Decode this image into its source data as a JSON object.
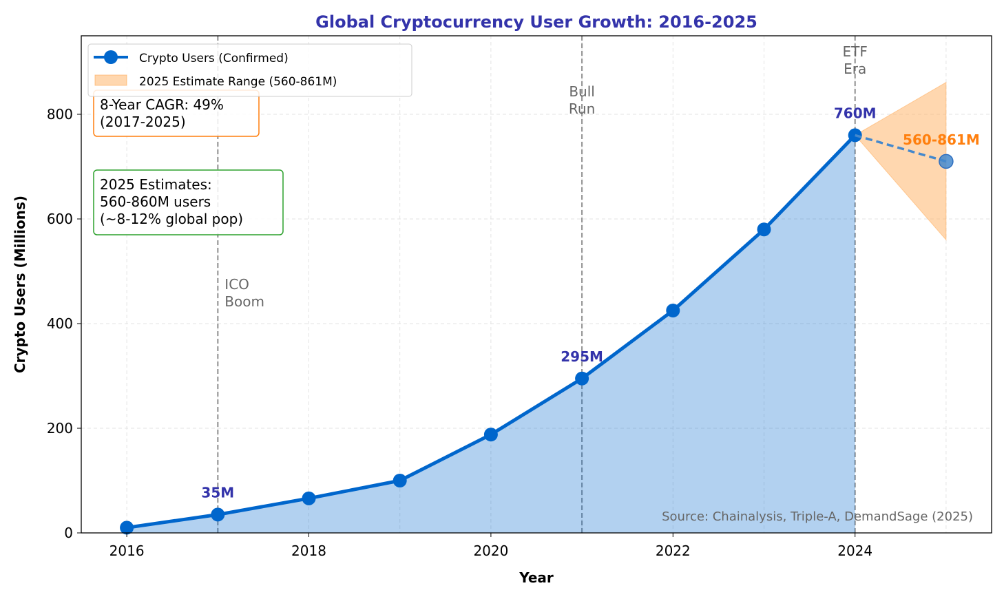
{
  "chart_data": {
    "type": "line",
    "title": "Global Cryptocurrency User Growth: 2016-2025",
    "xlabel": "Year",
    "ylabel": "Crypto Users (Millions)",
    "xlim": [
      2015.5,
      2025.5
    ],
    "ylim": [
      0,
      950
    ],
    "xticks": [
      2016,
      2018,
      2020,
      2022,
      2024
    ],
    "yticks": [
      0,
      200,
      400,
      600,
      800
    ],
    "grid": true,
    "legend_position": "top-left",
    "series": [
      {
        "name": "Crypto Users (Confirmed)",
        "color": "#0066cc",
        "fill": true,
        "x": [
          2016,
          2017,
          2018,
          2019,
          2020,
          2021,
          2022,
          2023,
          2024
        ],
        "y": [
          10,
          35,
          66,
          100,
          188,
          295,
          425,
          580,
          760
        ]
      },
      {
        "name": "2025 Estimate Range (560-861M)",
        "type": "area",
        "color": "#ffa64d",
        "x": [
          2024,
          2025
        ],
        "low": [
          760,
          560
        ],
        "high": [
          760,
          861
        ]
      },
      {
        "type": "dashed-projection",
        "color": "#4488cc",
        "x": [
          2024,
          2025
        ],
        "y": [
          760,
          710
        ]
      }
    ],
    "events": [
      {
        "x": 2017,
        "label": "ICO\nBoom"
      },
      {
        "x": 2021,
        "label": "Bull\nRun"
      },
      {
        "x": 2024,
        "label": "ETF\nEra"
      }
    ],
    "data_labels": [
      {
        "x": 2017,
        "y": 35,
        "text": "35M",
        "color": "#3333aa"
      },
      {
        "x": 2021,
        "y": 295,
        "text": "295M",
        "color": "#3333aa"
      },
      {
        "x": 2024,
        "y": 760,
        "text": "760M",
        "color": "#3333aa"
      },
      {
        "x": 2025,
        "y": 710,
        "text": "560-861M",
        "color": "#ff7f0e"
      }
    ],
    "annotations": [
      {
        "text": "8-Year CAGR: 49%\n(2017-2025)",
        "border": "#ff7f0e"
      },
      {
        "text": "2025 Estimates:\n560-860M users\n(~8-12% global pop)",
        "border": "#2ca02c"
      }
    ],
    "source": "Source: Chainalysis, Triple-A, DemandSage (2025)"
  }
}
